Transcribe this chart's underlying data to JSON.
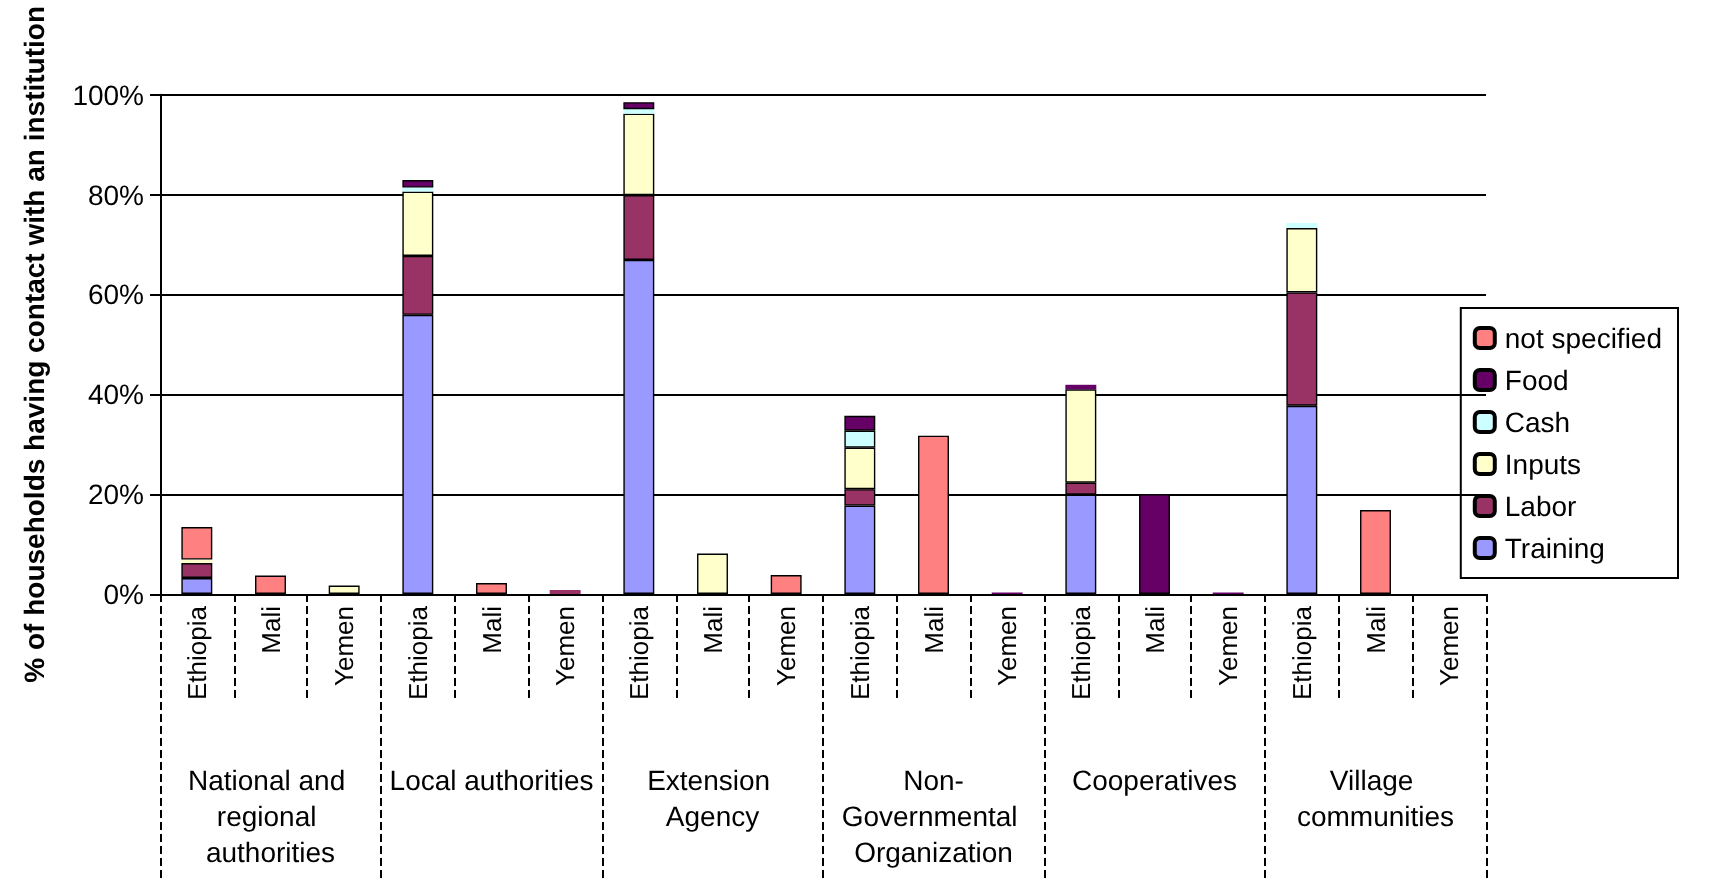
{
  "chart_data": {
    "type": "bar",
    "stacked": true,
    "ylabel": "% of households having contact with an institution",
    "categories": [
      "Ethiopia",
      "Mali",
      "Yemen",
      "Ethiopia",
      "Mali",
      "Yemen",
      "Ethiopia",
      "Mali",
      "Yemen",
      "Ethiopia",
      "Mali",
      "Yemen",
      "Ethiopia",
      "Mali",
      "Yemen",
      "Ethiopia",
      "Mali",
      "Yemen"
    ],
    "annotations": [
      "National and regional authorities",
      "Local authorities",
      "Extension Agency",
      "Non-Governmental Organization",
      "Cooperatives",
      "Village communities"
    ],
    "series": [
      {
        "name": "Training",
        "color": "#9999ff",
        "values": [
          3.2,
          0,
          0,
          55.9,
          0,
          0,
          66.9,
          0,
          0,
          17.7,
          0,
          0,
          19.9,
          0,
          0,
          37.7,
          0,
          0
        ]
      },
      {
        "name": "Labor",
        "color": "#993366",
        "values": [
          3,
          0,
          0,
          11.8,
          0,
          0.8,
          13,
          0,
          0,
          3.3,
          0,
          0,
          2.4,
          0,
          0,
          22.7,
          0,
          0
        ]
      },
      {
        "name": "Inputs",
        "color": "#ffffcc",
        "values": [
          0.7,
          0,
          1.7,
          12.9,
          0,
          0,
          16.3,
          8.1,
          0,
          8.3,
          0,
          0,
          18.7,
          0,
          0,
          12.9,
          0,
          0
        ]
      },
      {
        "name": "Cash",
        "color": "#ccffff",
        "values": [
          0,
          0,
          0,
          0.8,
          0,
          0,
          0.9,
          0,
          0,
          3.4,
          0,
          0,
          0,
          0,
          0,
          1,
          0,
          0
        ]
      },
      {
        "name": "Food",
        "color": "#660066",
        "values": [
          0,
          0,
          0,
          1.5,
          0,
          0,
          1.4,
          0,
          0,
          3,
          0,
          0.3,
          0.9,
          20,
          0.3,
          0,
          0,
          0
        ]
      },
      {
        "name": "not specified",
        "color": "#ff8080",
        "values": [
          6.5,
          3.7,
          0,
          0,
          2.2,
          0,
          0,
          0,
          3.8,
          0,
          31.7,
          0,
          0,
          0,
          0,
          0,
          16.8,
          0
        ]
      }
    ],
    "ylim": [
      0,
      100
    ],
    "yticks": [
      {
        "value": 0,
        "label": "0%"
      },
      {
        "value": 20,
        "label": "20%"
      },
      {
        "value": 40,
        "label": "40%"
      },
      {
        "value": 60,
        "label": "60%"
      },
      {
        "value": 80,
        "label": "80%"
      },
      {
        "value": 100,
        "label": "100%"
      }
    ],
    "grid": "y",
    "legend": "right"
  }
}
